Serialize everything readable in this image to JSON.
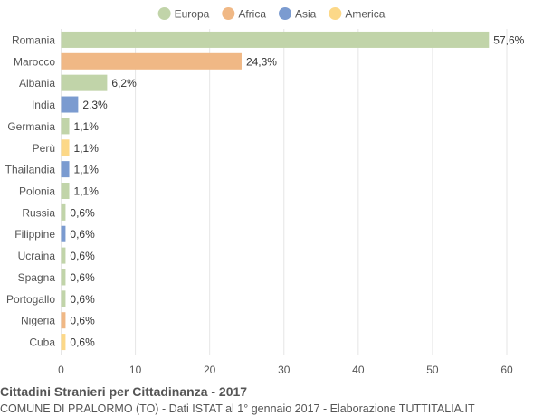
{
  "chart_data": {
    "type": "bar",
    "orientation": "horizontal",
    "title": "Cittadini Stranieri per Cittadinanza - 2017",
    "subtitle": "COMUNE DI PRALORMO (TO) - Dati ISTAT al 1° gennaio 2017 - Elaborazione TUTTITALIA.IT",
    "legend_position": "top-center",
    "legend": [
      {
        "name": "Europa",
        "color": "#c1d4a9"
      },
      {
        "name": "Africa",
        "color": "#f0b885"
      },
      {
        "name": "Asia",
        "color": "#7b9bd0"
      },
      {
        "name": "America",
        "color": "#fcd888"
      }
    ],
    "categories": [
      "Romania",
      "Marocco",
      "Albania",
      "India",
      "Germania",
      "Perù",
      "Thailandia",
      "Polonia",
      "Russia",
      "Filippine",
      "Ucraina",
      "Spagna",
      "Portogallo",
      "Nigeria",
      "Cuba"
    ],
    "values": [
      57.6,
      24.3,
      6.2,
      2.3,
      1.1,
      1.1,
      1.1,
      1.1,
      0.6,
      0.6,
      0.6,
      0.6,
      0.6,
      0.6,
      0.6
    ],
    "value_labels": [
      "57,6%",
      "24,3%",
      "6,2%",
      "2,3%",
      "1,1%",
      "1,1%",
      "1,1%",
      "1,1%",
      "0,6%",
      "0,6%",
      "0,6%",
      "0,6%",
      "0,6%",
      "0,6%",
      "0,6%"
    ],
    "groups": [
      "Europa",
      "Africa",
      "Europa",
      "Asia",
      "Europa",
      "America",
      "Asia",
      "Europa",
      "Europa",
      "Asia",
      "Europa",
      "Europa",
      "Europa",
      "Africa",
      "America"
    ],
    "xlim": [
      0,
      60
    ],
    "xticks": [
      0,
      10,
      20,
      30,
      40,
      50,
      60
    ],
    "xtick_labels": [
      "0",
      "10",
      "20",
      "30",
      "40",
      "50",
      "60"
    ],
    "grid": true,
    "grid_color": "#e6e6e6",
    "text_color": "#555555",
    "label_color": "#333333"
  }
}
